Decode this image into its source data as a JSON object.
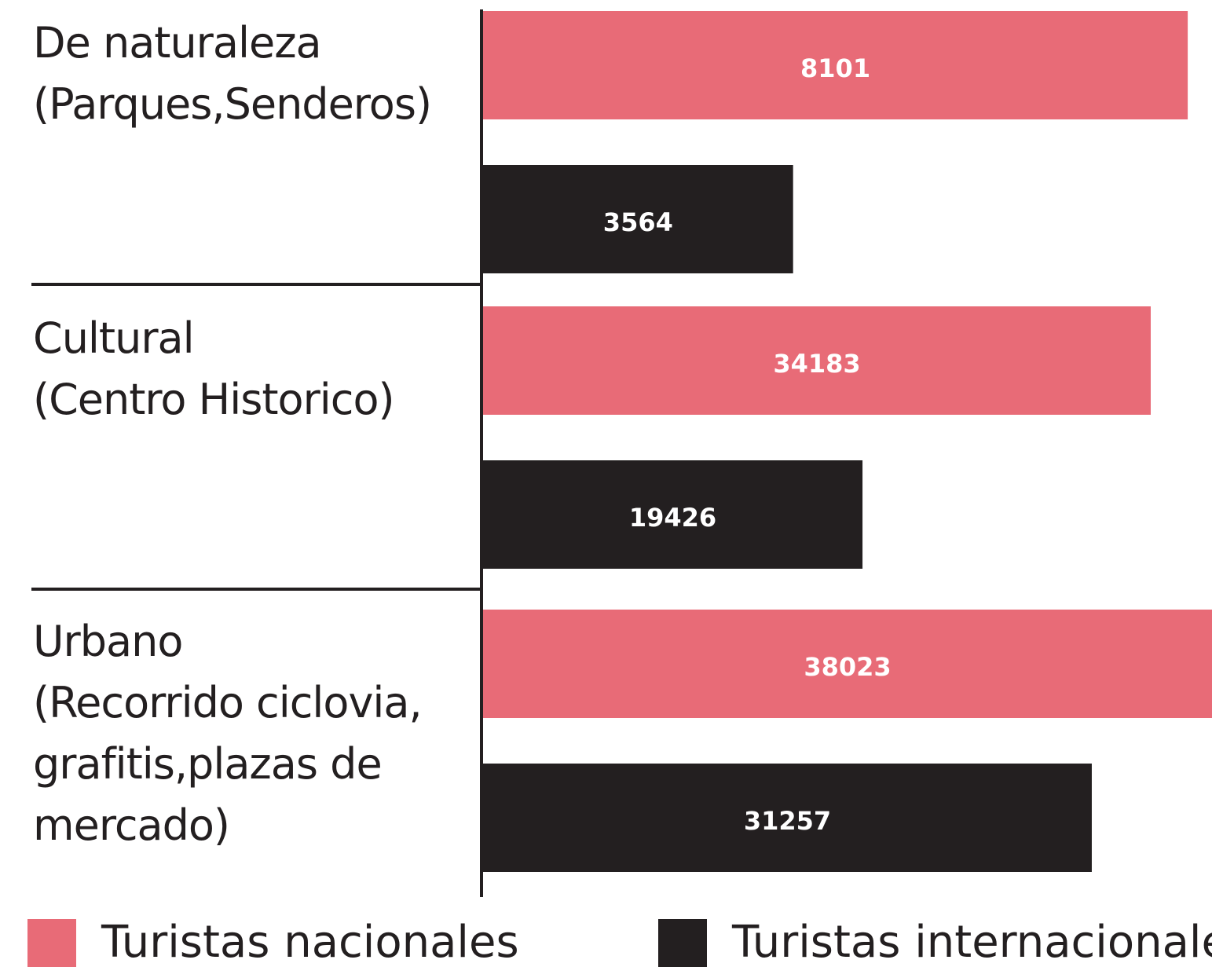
{
  "chart_data": [
    {
      "type": "bar",
      "orientation": "horizontal",
      "categories": [
        "De naturaleza\n(Parques,Senderos)"
      ],
      "xlim": [
        0,
        8380
      ],
      "series": [
        {
          "name": "Turistas nacionales",
          "color": "#e86b77",
          "values": [
            8101
          ]
        },
        {
          "name": "Turistas internacionales",
          "color": "#231f20",
          "values": [
            3564
          ]
        }
      ]
    },
    {
      "type": "bar",
      "orientation": "horizontal",
      "categories": [
        "Cultural\n(Centro Historico)"
      ],
      "xlim": [
        0,
        37320
      ],
      "series": [
        {
          "color": "#e86b77",
          "values": [
            34183
          ]
        },
        {
          "color": "#231f20",
          "values": [
            19426
          ]
        }
      ]
    },
    {
      "type": "bar",
      "orientation": "horizontal",
      "categories": [
        "Urbano\n(Recorrido ciclovia,\ngrafitis,plazas de\nmercado)"
      ],
      "xlim": [
        0,
        37430
      ],
      "series": [
        {
          "color": "#e86b77",
          "values": [
            38023
          ]
        },
        {
          "color": "#231f20",
          "values": [
            31257
          ]
        }
      ]
    }
  ]
}
